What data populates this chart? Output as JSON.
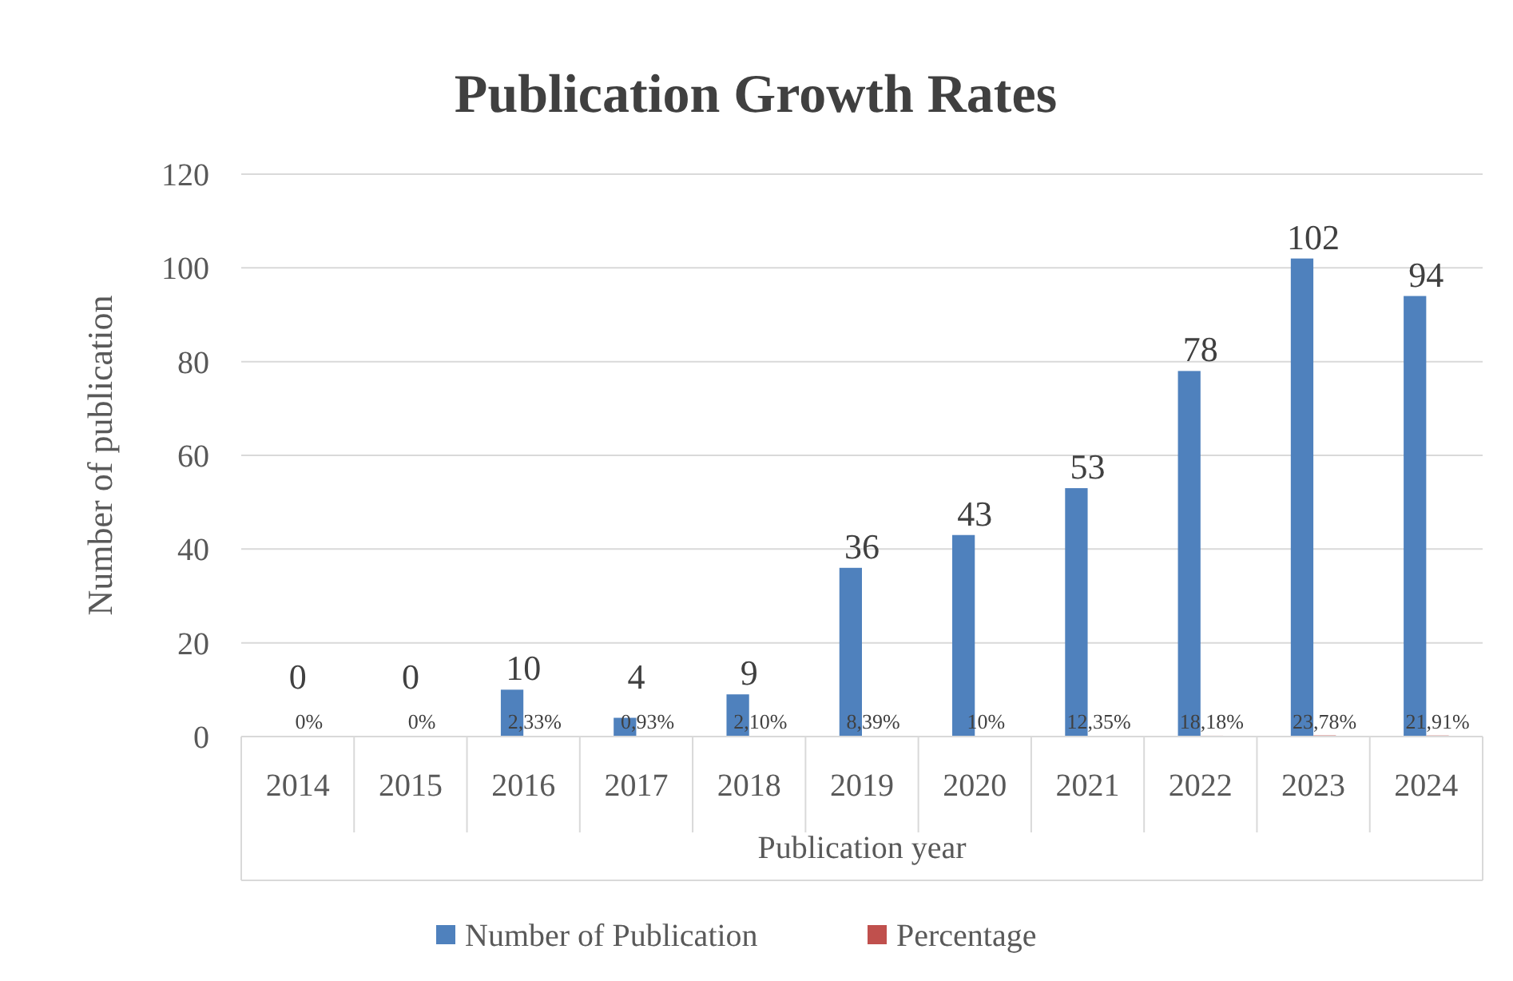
{
  "chart_data": {
    "type": "bar",
    "title": "Publication Growth Rates",
    "xlabel": "Publication year",
    "ylabel": "Number of publication",
    "categories": [
      "2014",
      "2015",
      "2016",
      "2017",
      "2018",
      "2019",
      "2020",
      "2021",
      "2022",
      "2023",
      "2024"
    ],
    "series": [
      {
        "name": "Number of Publication",
        "color": "#4f81bd",
        "values": [
          0,
          0,
          10,
          4,
          9,
          36,
          43,
          53,
          78,
          102,
          94
        ],
        "value_labels": [
          "0",
          "0",
          "10",
          "4",
          "9",
          "36",
          "43",
          "53",
          "78",
          "102",
          "94"
        ]
      },
      {
        "name": "Percentage",
        "color": "#c0504d",
        "values": [
          0,
          0,
          0.0233,
          0.0093,
          0.021,
          0.0839,
          0.1,
          0.1235,
          0.1818,
          0.2378,
          0.2191
        ],
        "value_labels": [
          "0%",
          "0%",
          "2,33%",
          "0,93%",
          "2,10%",
          "8,39%",
          "10%",
          "12,35%",
          "18,18%",
          "23,78%",
          "21,91%"
        ]
      }
    ],
    "ylim": [
      0,
      120
    ],
    "yticks": [
      0,
      20,
      40,
      60,
      80,
      100,
      120
    ],
    "grid": "y",
    "legend": "bottom"
  }
}
